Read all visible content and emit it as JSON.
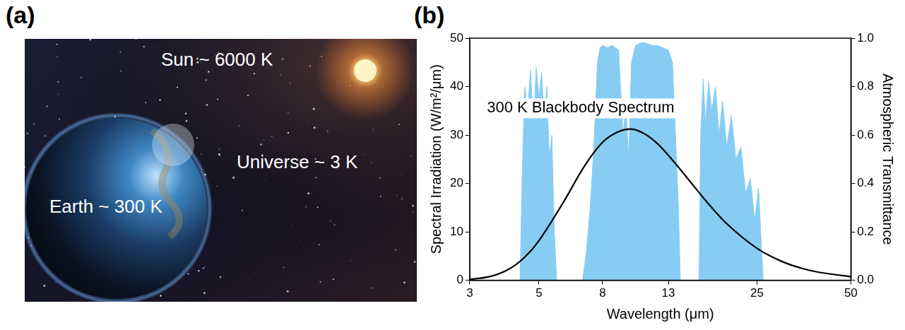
{
  "image_panel": {
    "label": "(a)",
    "texts": [
      "Sun ~ 6000 K",
      "Universe ~ 3 K",
      "Earth ~ 300 K"
    ]
  },
  "chart_data": {
    "type": "line",
    "panel_label": "(b)",
    "x_label": "Wavelength (μm)",
    "y_label": "Spectral Irradiation (W/m²/μm)",
    "y2_label": "Atmospheric Transmittance",
    "log": "x",
    "grid": false,
    "xlim": [
      3,
      50
    ],
    "xticks": [
      3,
      5,
      8,
      13,
      25,
      50
    ],
    "ylim": [
      0,
      50
    ],
    "yticks": [
      0,
      10,
      20,
      30,
      40,
      50
    ],
    "y2lim": [
      0,
      1
    ],
    "y2ticks": [
      {
        "value": 0,
        "label": "0.0"
      },
      {
        "value": 0.2,
        "label": "0.2"
      },
      {
        "value": 0.4,
        "label": "0.4"
      },
      {
        "value": 0.6,
        "label": "0.6"
      },
      {
        "value": 0.8,
        "label": "0.8"
      },
      {
        "value": 1,
        "label": "1.0"
      }
    ],
    "series": [
      {
        "type": "area",
        "axis": "y2",
        "color": "#87cdf3",
        "x": [
          3,
          4.35,
          4.42,
          4.5,
          4.6,
          4.7,
          4.8,
          4.9,
          5.0,
          5.1,
          5.2,
          5.3,
          5.4,
          5.5,
          5.6,
          5.7,
          6.9,
          7.1,
          7.3,
          7.5,
          7.7,
          7.85,
          8.0,
          8.3,
          8.6,
          9.0,
          9.3,
          9.5,
          9.7,
          9.9,
          10.2,
          10.6,
          11.0,
          11.5,
          12.0,
          12.5,
          13.0,
          13.4,
          13.7,
          14.0,
          14.2,
          16.3,
          16.5,
          16.8,
          17.1,
          17.5,
          17.9,
          18.4,
          18.9,
          19.4,
          20.0,
          20.7,
          21.4,
          22.2,
          23.0,
          23.8,
          24.6,
          25.3,
          25.8,
          26.2,
          50
        ],
        "values": [
          0,
          0,
          0.45,
          0.8,
          0.7,
          0.87,
          0.62,
          0.88,
          0.75,
          0.86,
          0.66,
          0.8,
          0.5,
          0.6,
          0.2,
          0,
          0,
          0.12,
          0.3,
          0.55,
          0.9,
          0.96,
          0.97,
          0.96,
          0.97,
          0.95,
          0.6,
          0.72,
          0.5,
          0.9,
          0.97,
          0.98,
          0.98,
          0.97,
          0.97,
          0.96,
          0.95,
          0.9,
          0.6,
          0.3,
          0,
          0,
          0.6,
          0.83,
          0.65,
          0.82,
          0.7,
          0.8,
          0.6,
          0.74,
          0.55,
          0.68,
          0.5,
          0.55,
          0.36,
          0.42,
          0.25,
          0.38,
          0.15,
          0,
          0
        ]
      },
      {
        "name": "300 K Blackbody Spectrum",
        "type": "line",
        "color": "#000000",
        "x": [
          3,
          3.5,
          4,
          4.5,
          5,
          6,
          7,
          8,
          9,
          10,
          11,
          12,
          13,
          15,
          17,
          20,
          25,
          30,
          35,
          40,
          50
        ],
        "values": [
          0.18,
          0.8,
          2.27,
          4.76,
          8.18,
          16.2,
          23.6,
          28.5,
          30.7,
          31.2,
          30.1,
          28.2,
          25.8,
          21.0,
          16.7,
          11.7,
          6.6,
          3.9,
          2.42,
          1.58,
          0.74
        ]
      }
    ]
  }
}
